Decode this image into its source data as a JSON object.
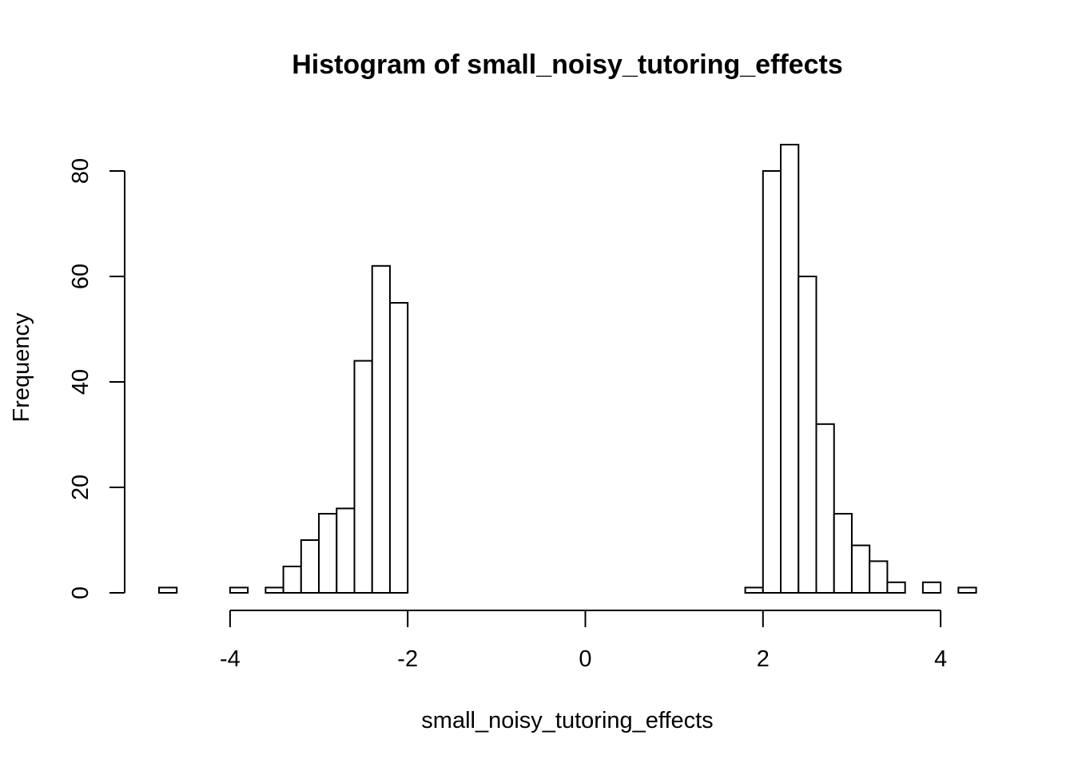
{
  "chart_data": {
    "type": "bar",
    "title": "Histogram of small_noisy_tutoring_effects",
    "xlabel": "small_noisy_tutoring_effects",
    "ylabel": "Frequency",
    "bin_width": 0.2,
    "bins": [
      {
        "x0": -4.8,
        "x1": -4.6,
        "count": 1
      },
      {
        "x0": -4.6,
        "x1": -4.4,
        "count": 0
      },
      {
        "x0": -4.4,
        "x1": -4.2,
        "count": 0
      },
      {
        "x0": -4.2,
        "x1": -4.0,
        "count": 0
      },
      {
        "x0": -4.0,
        "x1": -3.8,
        "count": 1
      },
      {
        "x0": -3.8,
        "x1": -3.6,
        "count": 0
      },
      {
        "x0": -3.6,
        "x1": -3.4,
        "count": 1
      },
      {
        "x0": -3.4,
        "x1": -3.2,
        "count": 5
      },
      {
        "x0": -3.2,
        "x1": -3.0,
        "count": 10
      },
      {
        "x0": -3.0,
        "x1": -2.8,
        "count": 15
      },
      {
        "x0": -2.8,
        "x1": -2.6,
        "count": 16
      },
      {
        "x0": -2.6,
        "x1": -2.4,
        "count": 44
      },
      {
        "x0": -2.4,
        "x1": -2.2,
        "count": 62
      },
      {
        "x0": -2.2,
        "x1": -2.0,
        "count": 55
      },
      {
        "x0": -2.0,
        "x1": -1.8,
        "count": 0
      },
      {
        "x0": -1.8,
        "x1": -1.6,
        "count": 0
      },
      {
        "x0": -1.6,
        "x1": -1.4,
        "count": 0
      },
      {
        "x0": -1.4,
        "x1": -1.2,
        "count": 0
      },
      {
        "x0": -1.2,
        "x1": -1.0,
        "count": 0
      },
      {
        "x0": -1.0,
        "x1": -0.8,
        "count": 0
      },
      {
        "x0": -0.8,
        "x1": -0.6,
        "count": 0
      },
      {
        "x0": -0.6,
        "x1": -0.4,
        "count": 0
      },
      {
        "x0": -0.4,
        "x1": -0.2,
        "count": 0
      },
      {
        "x0": -0.2,
        "x1": 0.0,
        "count": 0
      },
      {
        "x0": 0.0,
        "x1": 0.2,
        "count": 0
      },
      {
        "x0": 0.2,
        "x1": 0.4,
        "count": 0
      },
      {
        "x0": 0.4,
        "x1": 0.6,
        "count": 0
      },
      {
        "x0": 0.6,
        "x1": 0.8,
        "count": 0
      },
      {
        "x0": 0.8,
        "x1": 1.0,
        "count": 0
      },
      {
        "x0": 1.0,
        "x1": 1.2,
        "count": 0
      },
      {
        "x0": 1.2,
        "x1": 1.4,
        "count": 0
      },
      {
        "x0": 1.4,
        "x1": 1.6,
        "count": 0
      },
      {
        "x0": 1.6,
        "x1": 1.8,
        "count": 0
      },
      {
        "x0": 1.8,
        "x1": 2.0,
        "count": 1
      },
      {
        "x0": 2.0,
        "x1": 2.2,
        "count": 80
      },
      {
        "x0": 2.2,
        "x1": 2.4,
        "count": 85
      },
      {
        "x0": 2.4,
        "x1": 2.6,
        "count": 60
      },
      {
        "x0": 2.6,
        "x1": 2.8,
        "count": 32
      },
      {
        "x0": 2.8,
        "x1": 3.0,
        "count": 15
      },
      {
        "x0": 3.0,
        "x1": 3.2,
        "count": 9
      },
      {
        "x0": 3.2,
        "x1": 3.4,
        "count": 6
      },
      {
        "x0": 3.4,
        "x1": 3.6,
        "count": 2
      },
      {
        "x0": 3.6,
        "x1": 3.8,
        "count": 0
      },
      {
        "x0": 3.8,
        "x1": 4.0,
        "count": 2
      },
      {
        "x0": 4.0,
        "x1": 4.2,
        "count": 0
      },
      {
        "x0": 4.2,
        "x1": 4.4,
        "count": 1
      }
    ],
    "xticks": [
      -4,
      -2,
      0,
      2,
      4
    ],
    "xtick_labels": [
      "-4",
      "-2",
      "0",
      "2",
      "4"
    ],
    "yticks": [
      0,
      20,
      40,
      60,
      80
    ],
    "ytick_labels": [
      "0",
      "20",
      "40",
      "60",
      "80"
    ],
    "xlim": [
      -4.8,
      4.4
    ],
    "ylim": [
      0,
      85
    ],
    "grid": false,
    "colors": {
      "bar_fill": "#ffffff",
      "bar_stroke": "#000000"
    }
  }
}
